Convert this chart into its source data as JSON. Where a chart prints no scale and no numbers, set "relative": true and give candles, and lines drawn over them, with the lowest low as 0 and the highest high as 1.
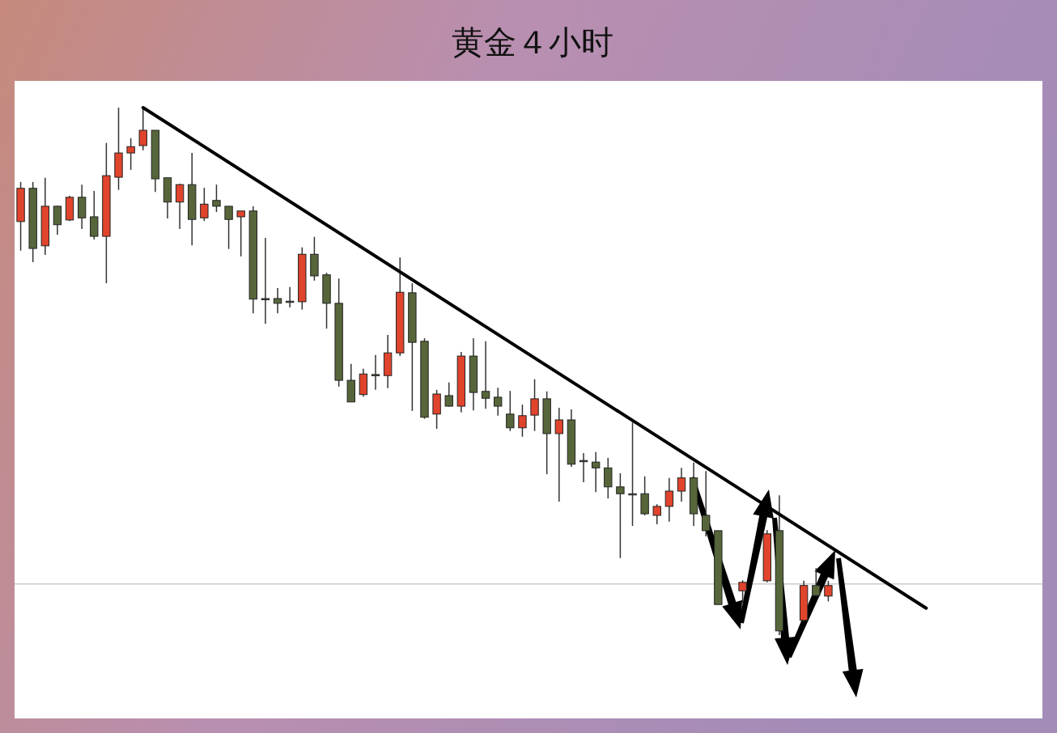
{
  "chart_data": {
    "type": "candlestick",
    "title": "黄金４小时",
    "relative": true,
    "categories": [
      null,
      null,
      null,
      null,
      null,
      null,
      null,
      null,
      null,
      null,
      null,
      null,
      null,
      null,
      null,
      null,
      null,
      null,
      null,
      null,
      null,
      null,
      null,
      null,
      null,
      null,
      null,
      null,
      null,
      null,
      null,
      null,
      null,
      null,
      null,
      null,
      null,
      null,
      null,
      null,
      null,
      null,
      null,
      null,
      null,
      null,
      null,
      null,
      null,
      null,
      null,
      null,
      null,
      null,
      null,
      null,
      null,
      null,
      null,
      null,
      null,
      null,
      null,
      null,
      null,
      null,
      null,
      null,
      null,
      null,
      null,
      null,
      null,
      null,
      null,
      null,
      null,
      null,
      null,
      null,
      null,
      null,
      null,
      null
    ],
    "ohlc": [
      [
        0.784,
        0.859,
        0.729,
        0.847
      ],
      [
        0.847,
        0.859,
        0.707,
        0.733
      ],
      [
        0.738,
        0.867,
        0.721,
        0.813
      ],
      [
        0.813,
        0.814,
        0.759,
        0.778
      ],
      [
        0.787,
        0.833,
        0.785,
        0.83
      ],
      [
        0.83,
        0.854,
        0.77,
        0.791
      ],
      [
        0.793,
        0.842,
        0.75,
        0.756
      ],
      [
        0.756,
        0.933,
        0.667,
        0.871
      ],
      [
        0.868,
        1,
        0.844,
        0.914
      ],
      [
        0.914,
        0.942,
        0.882,
        0.926
      ],
      [
        0.928,
        1,
        0.919,
        0.957
      ],
      [
        0.957,
        0.957,
        0.84,
        0.865
      ],
      [
        0.867,
        0.867,
        0.79,
        0.821
      ],
      [
        0.821,
        0.856,
        0.77,
        0.854
      ],
      [
        0.854,
        0.914,
        0.739,
        0.788
      ],
      [
        0.791,
        0.848,
        0.785,
        0.817
      ],
      [
        0.824,
        0.854,
        0.802,
        0.813
      ],
      [
        0.813,
        0.813,
        0.732,
        0.788
      ],
      [
        0.793,
        0.804,
        0.718,
        0.804
      ],
      [
        0.804,
        0.813,
        0.61,
        0.637
      ],
      [
        0.638,
        0.753,
        0.59,
        0.638
      ],
      [
        0.638,
        0.658,
        0.61,
        0.629
      ],
      [
        0.633,
        0.66,
        0.621,
        0.633
      ],
      [
        0.632,
        0.735,
        0.617,
        0.722
      ],
      [
        0.722,
        0.755,
        0.672,
        0.681
      ],
      [
        0.683,
        0.687,
        0.581,
        0.629
      ],
      [
        0.629,
        0.676,
        0.471,
        0.483
      ],
      [
        0.483,
        0.514,
        0.442,
        0.442
      ],
      [
        0.456,
        0.505,
        0.452,
        0.495
      ],
      [
        0.494,
        0.531,
        0.465,
        0.494
      ],
      [
        0.492,
        0.569,
        0.468,
        0.535
      ],
      [
        0.535,
        0.716,
        0.529,
        0.65
      ],
      [
        0.649,
        0.667,
        0.425,
        0.555
      ],
      [
        0.557,
        0.563,
        0.41,
        0.413
      ],
      [
        0.419,
        0.465,
        0.391,
        0.457
      ],
      [
        0.454,
        0.479,
        0.433,
        0.434
      ],
      [
        0.434,
        0.537,
        0.422,
        0.529
      ],
      [
        0.529,
        0.563,
        0.426,
        0.46
      ],
      [
        0.462,
        0.557,
        0.429,
        0.449
      ],
      [
        0.451,
        0.469,
        0.416,
        0.434
      ],
      [
        0.419,
        0.463,
        0.387,
        0.393
      ],
      [
        0.393,
        0.437,
        0.376,
        0.416
      ],
      [
        0.417,
        0.485,
        0.387,
        0.448
      ],
      [
        0.448,
        0.462,
        0.305,
        0.382
      ],
      [
        0.382,
        0.431,
        0.253,
        0.408
      ],
      [
        0.408,
        0.428,
        0.319,
        0.324
      ],
      [
        0.331,
        0.345,
        0.29,
        0.331
      ],
      [
        0.328,
        0.347,
        0.271,
        0.317
      ],
      [
        0.317,
        0.336,
        0.259,
        0.281
      ],
      [
        0.281,
        0.307,
        0.146,
        0.268
      ],
      [
        0.268,
        0.403,
        0.207,
        0.268
      ],
      [
        0.268,
        0.301,
        0.227,
        0.23
      ],
      [
        0.227,
        0.248,
        0.21,
        0.244
      ],
      [
        0.244,
        0.298,
        0.215,
        0.273
      ],
      [
        0.273,
        0.317,
        0.253,
        0.298
      ],
      [
        0.298,
        0.327,
        0.207,
        0.23
      ],
      [
        0.227,
        0.311,
        0.187,
        0.198
      ],
      [
        0.198,
        0.198,
        0.058,
        0.058
      ],
      null,
      [
        0.084,
        0.104,
        0.061,
        0.1
      ],
      null,
      [
        0.103,
        0.199,
        0.1,
        0.192
      ],
      [
        0.198,
        0.265,
        0,
        0.008
      ],
      null,
      [
        0.028,
        0.103,
        0.026,
        0.094
      ],
      [
        0.094,
        0.127,
        0.074,
        0.075
      ],
      [
        0.074,
        0.103,
        0.064,
        0.094
      ],
      null,
      null,
      null,
      null,
      null,
      null,
      null,
      null,
      null,
      null,
      null,
      null,
      null,
      null,
      null,
      null,
      null
    ],
    "colors": [
      "#e0442c",
      "#56663a",
      "#e0442c",
      "#56663a",
      "#e0442c",
      "#56663a",
      "#56663a",
      "#e0442c",
      "#e0442c",
      "#e0442c",
      "#e0442c",
      "#56663a",
      "#56663a",
      "#e0442c",
      "#56663a",
      "#e0442c",
      "#56663a",
      "#56663a",
      "#e0442c",
      "#56663a",
      "#56663a",
      "#56663a",
      "#56663a",
      "#e0442c",
      "#56663a",
      "#56663a",
      "#56663a",
      "#56663a",
      "#e0442c",
      "#56663a",
      "#e0442c",
      "#e0442c",
      "#56663a",
      "#56663a",
      "#e0442c",
      "#56663a",
      "#e0442c",
      "#56663a",
      "#56663a",
      "#56663a",
      "#56663a",
      "#e0442c",
      "#e0442c",
      "#56663a",
      "#e0442c",
      "#56663a",
      "#56663a",
      "#56663a",
      "#56663a",
      "#56663a",
      "#56663a",
      "#56663a",
      "#e0442c",
      "#e0442c",
      "#e0442c",
      "#56663a",
      "#56663a",
      "#56663a",
      null,
      "#e0442c",
      null,
      "#e0442c",
      "#56663a",
      null,
      "#e0442c",
      "#56663a",
      "#e0442c",
      null,
      null,
      null,
      null,
      null,
      null,
      null,
      null,
      null,
      null,
      null,
      null,
      null,
      null,
      null,
      null,
      null
    ],
    "series": [
      {
        "type": "line",
        "values": [
          null,
          null,
          null,
          null,
          null,
          null,
          null,
          null,
          null,
          null,
          1,
          null,
          null,
          null,
          null,
          null,
          null,
          null,
          null,
          null,
          null,
          null,
          null,
          null,
          null,
          null,
          null,
          null,
          null,
          null,
          null,
          null,
          null,
          null,
          null,
          null,
          null,
          null,
          null,
          null,
          null,
          null,
          null,
          null,
          null,
          null,
          null,
          null,
          null,
          null,
          null,
          null,
          null,
          null,
          null,
          null,
          null,
          null,
          null,
          null,
          null,
          null,
          null,
          null,
          null,
          null,
          null,
          null,
          null,
          null,
          null,
          null,
          null,
          null,
          0.051,
          null,
          null,
          null,
          null,
          null,
          null,
          null,
          null,
          null
        ],
        "color": "#000000"
      }
    ],
    "ref_lines": [
      {
        "axis": "y",
        "value": 0.097,
        "color": "#cccccc"
      }
    ]
  }
}
